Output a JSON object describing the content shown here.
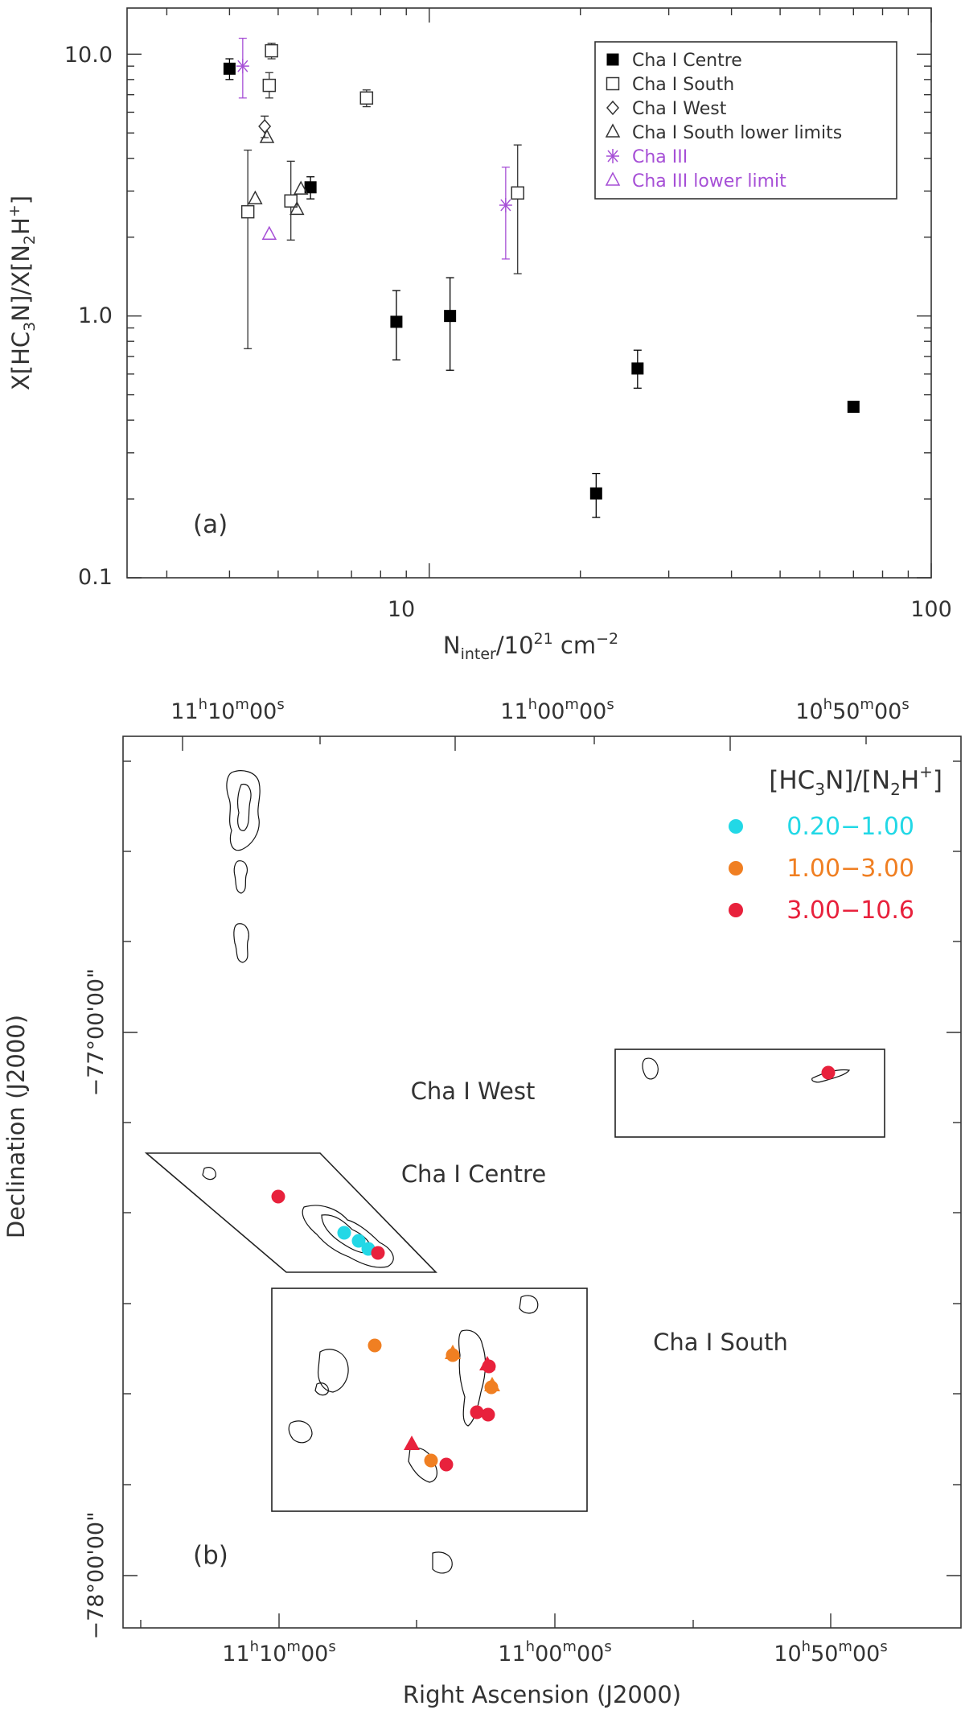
{
  "chart_data": [
    {
      "type": "scatter",
      "panel_label": "(a)",
      "xlabel": "N_inter/10^21 cm^-2",
      "ylabel": "X[HC3N]/X[N2H+]",
      "xscale": "log",
      "yscale": "log",
      "xlim": [
        2.5,
        100
      ],
      "ylim": [
        0.1,
        15
      ],
      "x_ticks": [
        "10",
        "100"
      ],
      "y_ticks": [
        "0.1",
        "1.0",
        "10.0"
      ],
      "legend_position": "top-right",
      "series": [
        {
          "name": "Cha I Centre",
          "marker": "filled-square",
          "color": "#000000",
          "points": [
            {
              "x": 4.0,
              "y": 8.8,
              "ylo": 8.0,
              "yhi": 9.6
            },
            {
              "x": 5.8,
              "y": 3.1,
              "ylo": 2.8,
              "yhi": 3.4
            },
            {
              "x": 8.6,
              "y": 0.95,
              "ylo": 0.68,
              "yhi": 1.25
            },
            {
              "x": 11.0,
              "y": 1.0,
              "ylo": 0.62,
              "yhi": 1.4
            },
            {
              "x": 21.5,
              "y": 0.21,
              "ylo": 0.17,
              "yhi": 0.25
            },
            {
              "x": 26.0,
              "y": 0.63,
              "ylo": 0.53,
              "yhi": 0.74
            },
            {
              "x": 70.0,
              "y": 0.45
            }
          ]
        },
        {
          "name": "Cha I South",
          "marker": "open-square",
          "color": "#333333",
          "points": [
            {
              "x": 4.85,
              "y": 10.3,
              "ylo": 9.6,
              "yhi": 11.0
            },
            {
              "x": 4.8,
              "y": 7.6,
              "ylo": 6.8,
              "yhi": 8.5
            },
            {
              "x": 7.5,
              "y": 6.8,
              "ylo": 6.3,
              "yhi": 7.3
            },
            {
              "x": 4.35,
              "y": 2.5,
              "ylo": 0.75,
              "yhi": 4.3
            },
            {
              "x": 5.3,
              "y": 2.75,
              "ylo": 1.95,
              "yhi": 3.9
            },
            {
              "x": 15.0,
              "y": 2.95,
              "ylo": 1.45,
              "yhi": 4.5
            }
          ]
        },
        {
          "name": "Cha I West",
          "marker": "open-diamond",
          "color": "#333333",
          "points": [
            {
              "x": 4.7,
              "y": 5.3,
              "ylo": 4.8,
              "yhi": 5.8
            }
          ]
        },
        {
          "name": "Cha I South lower limits",
          "marker": "open-triangle",
          "color": "#333333",
          "points": [
            {
              "x": 4.5,
              "y": 2.8
            },
            {
              "x": 4.75,
              "y": 4.8
            },
            {
              "x": 5.45,
              "y": 2.55
            },
            {
              "x": 5.55,
              "y": 3.05
            }
          ]
        },
        {
          "name": "Cha III",
          "marker": "asterisk",
          "color": "#a64fd6",
          "points": [
            {
              "x": 4.25,
              "y": 9.0,
              "ylo": 6.8,
              "yhi": 11.5
            },
            {
              "x": 14.2,
              "y": 2.65,
              "ylo": 1.65,
              "yhi": 3.7
            }
          ]
        },
        {
          "name": "Cha III lower limit",
          "marker": "open-triangle",
          "color": "#a64fd6",
          "points": [
            {
              "x": 4.8,
              "y": 2.05
            }
          ]
        }
      ]
    },
    {
      "type": "map",
      "panel_label": "(b)",
      "xlabel": "Right Ascension (J2000)",
      "ylabel": "Declination (J2000)",
      "ra_ticks_top": [
        "11h10m00s",
        "11h00m00s",
        "10h50m00s"
      ],
      "ra_ticks_bottom": [
        "11h10m00s",
        "11h00m00s",
        "10h50m00s"
      ],
      "dec_ticks": [
        "−77°00'00\"",
        "−78°00'00\""
      ],
      "region_labels": [
        "Cha I West",
        "Cha I Centre",
        "Cha I South"
      ],
      "legend_title": "[HC3N]/[N2H+]",
      "legend_position": "top-right",
      "ratio_bins": [
        {
          "label": "0.20−1.00",
          "color": "#22d8e6"
        },
        {
          "label": "1.00−3.00",
          "color": "#f07f22"
        },
        {
          "label": "3.00−10.6",
          "color": "#e8213c"
        }
      ]
    }
  ],
  "panel_b_text": {
    "legend_title_main": "[HC",
    "legend_title_sub1": "3",
    "legend_title_mid": "N]/[N",
    "legend_title_sub2": "2",
    "legend_title_mid2": "H",
    "legend_title_sup": "+",
    "legend_title_end": "]",
    "region_west": "Cha I West",
    "region_centre": "Cha I Centre",
    "region_south": "Cha I South",
    "xlabel": "Right Ascension (J2000)",
    "ylabel": "Declination (J2000)",
    "panel_label": "(b)"
  },
  "panel_a_text": {
    "panel_label": "(a)",
    "x_tick_10": "10",
    "x_tick_100": "100",
    "y_tick_01": "0.1",
    "y_tick_1": "1.0",
    "y_tick_10": "10.0"
  }
}
